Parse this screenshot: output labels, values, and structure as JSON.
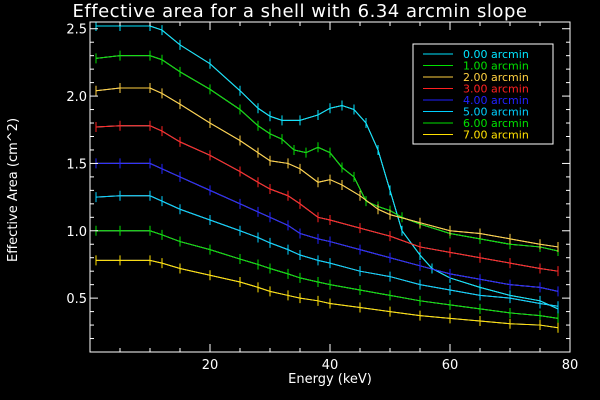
{
  "chart_data": {
    "type": "line",
    "title": "Effective area for a shell with 6.34 arcmin slope",
    "xlabel": "Energy (keV)",
    "ylabel": "Effective Area (cm^2)",
    "xlim": [
      0,
      80
    ],
    "ylim": [
      0.1,
      2.55
    ],
    "xticks": [
      20,
      40,
      60,
      80
    ],
    "yticks": [
      0.5,
      1.0,
      1.5,
      2.0,
      2.5
    ],
    "xtick_labels": [
      "20",
      "40",
      "60",
      "80"
    ],
    "ytick_labels": [
      "0.5",
      "1.0",
      "1.5",
      "2.0",
      "2.5"
    ],
    "grid": false,
    "legend": {
      "placement": "top-right",
      "entries": [
        "0.00 arcmin",
        "1.00 arcmin",
        "2.00 arcmin",
        "3.00 arcmin",
        "4.00 arcmin",
        "5.00 arcmin",
        "6.00 arcmin",
        "7.00 arcmin"
      ]
    },
    "colors": [
      "#00e5ff",
      "#00e000",
      "#ffd040",
      "#ff2020",
      "#2020ff",
      "#00d0ff",
      "#00e000",
      "#ffe000"
    ],
    "model_color": "#ffffff",
    "series": [
      {
        "name": "0.00 arcmin",
        "x": [
          1,
          5,
          10,
          12,
          15,
          20,
          25,
          28,
          30,
          32,
          35,
          38,
          40,
          42,
          44,
          46,
          48,
          50,
          52,
          55,
          57,
          60,
          65,
          70,
          75,
          78
        ],
        "values": [
          2.52,
          2.52,
          2.52,
          2.49,
          2.38,
          2.24,
          2.04,
          1.91,
          1.85,
          1.82,
          1.82,
          1.86,
          1.91,
          1.93,
          1.9,
          1.8,
          1.6,
          1.3,
          1.0,
          0.82,
          0.72,
          0.65,
          0.58,
          0.52,
          0.48,
          0.42
        ]
      },
      {
        "name": "1.00 arcmin",
        "x": [
          1,
          5,
          10,
          12,
          15,
          20,
          25,
          28,
          30,
          32,
          34,
          36,
          38,
          40,
          42,
          44,
          46,
          48,
          50,
          52,
          55,
          60,
          65,
          70,
          75,
          78
        ],
        "values": [
          2.28,
          2.3,
          2.3,
          2.27,
          2.18,
          2.05,
          1.9,
          1.78,
          1.72,
          1.68,
          1.6,
          1.58,
          1.62,
          1.58,
          1.47,
          1.4,
          1.22,
          1.18,
          1.15,
          1.1,
          1.05,
          0.98,
          0.94,
          0.9,
          0.88,
          0.85
        ]
      },
      {
        "name": "2.00 arcmin",
        "x": [
          1,
          5,
          10,
          12,
          15,
          20,
          25,
          28,
          30,
          33,
          35,
          38,
          40,
          42,
          45,
          48,
          50,
          55,
          60,
          65,
          70,
          75,
          78
        ],
        "values": [
          2.04,
          2.06,
          2.06,
          2.02,
          1.94,
          1.8,
          1.67,
          1.58,
          1.52,
          1.5,
          1.46,
          1.36,
          1.38,
          1.34,
          1.26,
          1.16,
          1.12,
          1.06,
          1.0,
          0.98,
          0.94,
          0.9,
          0.88
        ]
      },
      {
        "name": "3.00 arcmin",
        "x": [
          1,
          5,
          10,
          12,
          15,
          20,
          25,
          28,
          30,
          33,
          35,
          38,
          40,
          45,
          50,
          55,
          60,
          65,
          70,
          75,
          78
        ],
        "values": [
          1.77,
          1.78,
          1.78,
          1.74,
          1.66,
          1.56,
          1.44,
          1.36,
          1.31,
          1.26,
          1.2,
          1.1,
          1.08,
          1.02,
          0.96,
          0.88,
          0.84,
          0.8,
          0.76,
          0.72,
          0.7
        ]
      },
      {
        "name": "4.00 arcmin",
        "x": [
          1,
          5,
          10,
          12,
          15,
          20,
          25,
          28,
          30,
          33,
          35,
          38,
          40,
          45,
          50,
          55,
          60,
          65,
          70,
          75,
          78
        ],
        "values": [
          1.5,
          1.5,
          1.5,
          1.46,
          1.4,
          1.3,
          1.2,
          1.14,
          1.1,
          1.04,
          0.98,
          0.94,
          0.92,
          0.86,
          0.8,
          0.74,
          0.68,
          0.64,
          0.6,
          0.58,
          0.55
        ]
      },
      {
        "name": "5.00 arcmin",
        "x": [
          1,
          5,
          10,
          12,
          15,
          20,
          25,
          28,
          30,
          33,
          35,
          38,
          40,
          45,
          50,
          55,
          60,
          65,
          70,
          75,
          78
        ],
        "values": [
          1.25,
          1.26,
          1.26,
          1.22,
          1.16,
          1.08,
          1.0,
          0.95,
          0.91,
          0.86,
          0.82,
          0.78,
          0.76,
          0.7,
          0.66,
          0.6,
          0.56,
          0.52,
          0.5,
          0.46,
          0.44
        ]
      },
      {
        "name": "6.00 arcmin",
        "x": [
          1,
          5,
          10,
          12,
          15,
          20,
          25,
          28,
          30,
          33,
          35,
          38,
          40,
          45,
          50,
          55,
          60,
          65,
          70,
          75,
          78
        ],
        "values": [
          1.0,
          1.0,
          1.0,
          0.97,
          0.92,
          0.86,
          0.79,
          0.75,
          0.72,
          0.68,
          0.65,
          0.62,
          0.6,
          0.56,
          0.52,
          0.48,
          0.45,
          0.42,
          0.39,
          0.37,
          0.35
        ]
      },
      {
        "name": "7.00 arcmin",
        "x": [
          1,
          5,
          10,
          12,
          15,
          20,
          25,
          28,
          30,
          33,
          35,
          38,
          40,
          45,
          50,
          55,
          60,
          65,
          70,
          75,
          78
        ],
        "values": [
          0.78,
          0.78,
          0.78,
          0.76,
          0.72,
          0.67,
          0.62,
          0.58,
          0.55,
          0.52,
          0.5,
          0.48,
          0.46,
          0.43,
          0.4,
          0.37,
          0.35,
          0.33,
          0.31,
          0.3,
          0.28
        ]
      }
    ]
  }
}
